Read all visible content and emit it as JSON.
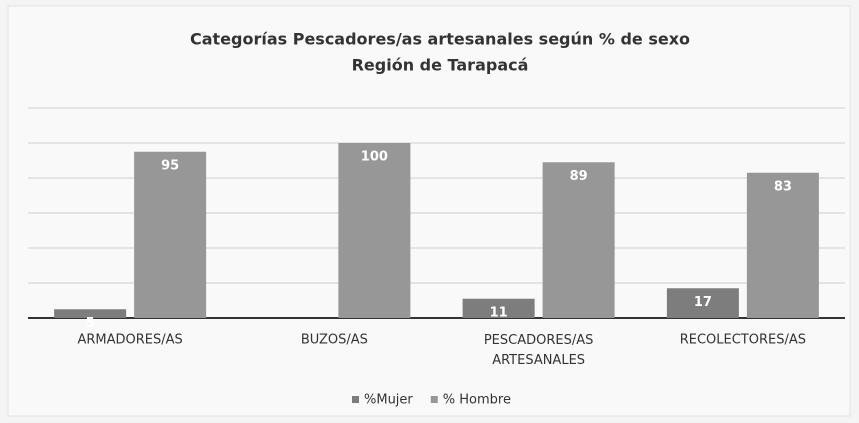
{
  "chart_data": {
    "type": "bar",
    "title": "Categorías Pescadores/as artesanales según % de sexo",
    "subtitle": "Región de Tarapacá",
    "categories": [
      "ARMADORES/AS",
      "BUZOS/AS",
      "PESCADORES/AS ARTESANALES",
      "RECOLECTORES/AS"
    ],
    "series": [
      {
        "name": "%Mujer",
        "color": "#7d7d7d",
        "values": [
          5,
          null,
          11,
          17
        ]
      },
      {
        "name": "% Hombre",
        "color": "#979797",
        "values": [
          95,
          100,
          89,
          83
        ]
      }
    ],
    "ylim": [
      0,
      120
    ],
    "yticks": [
      0,
      20,
      40,
      60,
      80,
      100,
      120
    ],
    "grid": true
  }
}
